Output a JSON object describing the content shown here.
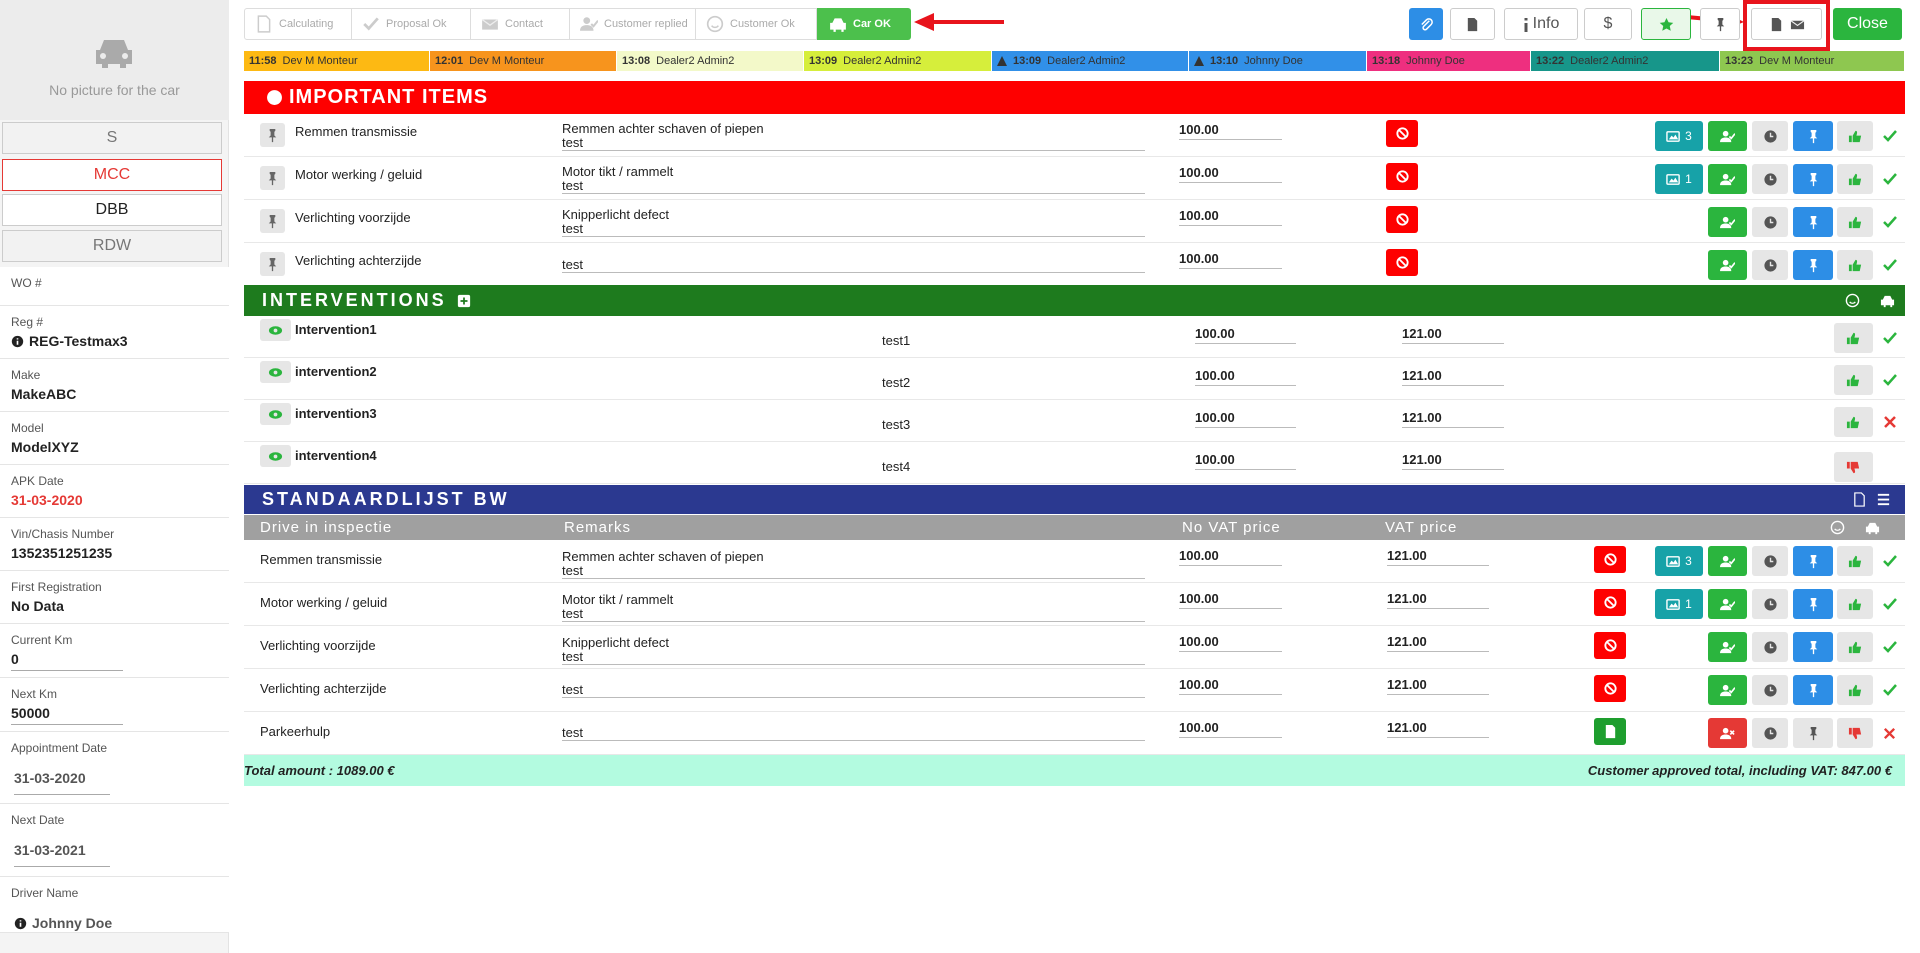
{
  "sidebar": {
    "no_picture": "No picture for the car",
    "tabs": [
      "S",
      "MCC",
      "DBB",
      "RDW"
    ],
    "fields": [
      {
        "label": "WO #"
      },
      {
        "label": "Reg #",
        "value": "REG-Testmax3"
      },
      {
        "label": "Make",
        "value": "MakeABC"
      },
      {
        "label": "Model",
        "value": "ModelXYZ"
      },
      {
        "label": "APK Date",
        "value": "31-03-2020"
      },
      {
        "label": "Vin/Chasis Number",
        "value": "1352351251235"
      },
      {
        "label": "First Registration",
        "value": "No Data"
      },
      {
        "label": "Current Km",
        "value": "0"
      },
      {
        "label": "Next Km",
        "value": "50000"
      },
      {
        "label": "Appointment Date",
        "value": "31-03-2020"
      },
      {
        "label": "Next Date",
        "value": "31-03-2021"
      },
      {
        "label": "Driver Name",
        "value": "Johnny Doe"
      }
    ]
  },
  "steps": [
    "Calculating",
    "Proposal Ok",
    "Contact",
    "Customer replied",
    "Customer Ok",
    "Car OK"
  ],
  "toolbar": {
    "info": "Info",
    "dollar": "$",
    "close": "Close"
  },
  "timeline": [
    {
      "time": "11:58",
      "name": "Dev M Monteur",
      "color": "#fdb913"
    },
    {
      "time": "12:01",
      "name": "Dev M Monteur",
      "color": "#f7941d"
    },
    {
      "time": "13:08",
      "name": "Dealer2 Admin2",
      "color": "#f3f9c9"
    },
    {
      "time": "13:09",
      "name": "Dealer2 Admin2",
      "color": "#d6ee3b"
    },
    {
      "time": "13:09",
      "name": "Dealer2 Admin2",
      "color": "#3190e8"
    },
    {
      "time": "13:10",
      "name": "Johnny Doe",
      "color": "#3190e8"
    },
    {
      "time": "13:18",
      "name": "Johnny Doe",
      "color": "#ee2f7f"
    },
    {
      "time": "13:22",
      "name": "Dealer2 Admin2",
      "color": "#17968a"
    },
    {
      "time": "13:23",
      "name": "Dev M Monteur",
      "color": "#8ec750"
    }
  ],
  "important": {
    "title": "IMPORTANT ITEMS",
    "items": [
      {
        "name": "Remmen transmissie",
        "remarks": [
          "Remmen achter schaven of piepen",
          "test"
        ],
        "price": "100.00",
        "photos": 3
      },
      {
        "name": "Motor werking / geluid",
        "remarks": [
          "Motor tikt / rammelt",
          "test"
        ],
        "price": "100.00",
        "photos": 1
      },
      {
        "name": "Verlichting voorzijde",
        "remarks": [
          "Knipperlicht defect",
          "test"
        ],
        "price": "100.00"
      },
      {
        "name": "Verlichting achterzijde",
        "remarks": [
          "test"
        ],
        "price": "100.00"
      }
    ]
  },
  "interventions": {
    "title": "INTERVENTIONS",
    "rows": [
      {
        "name": "Intervention1",
        "remark": "test1",
        "price": "100.00",
        "vat_price": "121.00"
      },
      {
        "name": "intervention2",
        "remark": "test2",
        "price": "100.00",
        "vat_price": "121.00"
      },
      {
        "name": "intervention3",
        "remark": "test3",
        "price": "100.00",
        "vat_price": "121.00"
      },
      {
        "name": "intervention4",
        "remark": "test4",
        "price": "100.00",
        "vat_price": "121.00"
      }
    ]
  },
  "standard": {
    "title": "STANDAARDLIJST BW",
    "columns": [
      "Drive in inspectie",
      "Remarks",
      "No VAT price",
      "VAT price"
    ],
    "rows": [
      {
        "name": "Remmen transmissie",
        "remarks": [
          "Remmen achter schaven of piepen",
          "test"
        ],
        "price": "100.00",
        "vat_price": "121.00",
        "photos": 3
      },
      {
        "name": "Motor werking / geluid",
        "remarks": [
          "Motor tikt / rammelt",
          "test"
        ],
        "price": "100.00",
        "vat_price": "121.00",
        "photos": 1
      },
      {
        "name": "Verlichting voorzijde",
        "remarks": [
          "Knipperlicht defect",
          "test"
        ],
        "price": "100.00",
        "vat_price": "121.00"
      },
      {
        "name": "Verlichting achterzijde",
        "remarks": [
          "test"
        ],
        "price": "100.00",
        "vat_price": "121.00"
      },
      {
        "name": "Parkeerhulp",
        "remarks": [
          "test"
        ],
        "price": "100.00",
        "vat_price": "121.00"
      }
    ]
  },
  "totals": {
    "total": "Total amount : 1089.00 €",
    "approved": "Customer approved total, including VAT: 847.00 €"
  }
}
